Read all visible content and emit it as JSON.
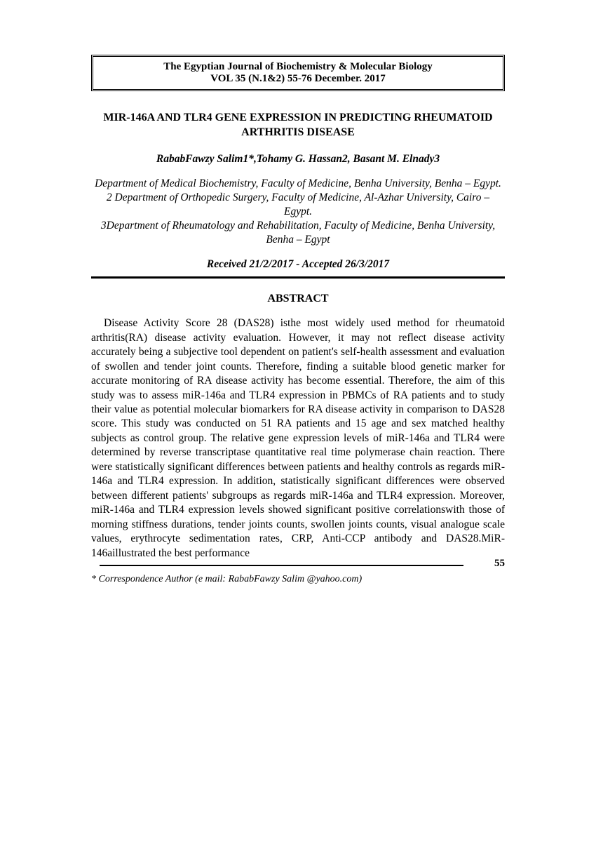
{
  "journal": {
    "line1": "The Egyptian Journal of Biochemistry & Molecular Biology",
    "line2": "VOL 35 (N.1&2) 55-76 December. 2017"
  },
  "title": "MIR-146A AND TLR4 GENE EXPRESSION IN PREDICTING RHEUMATOID ARTHRITIS DISEASE",
  "authors": "RababFawzy Salim1*,Tohamy G. Hassan2, Basant M. Elnady3",
  "affiliations": [
    "Department of Medical Biochemistry, Faculty of Medicine, Benha University, Benha – Egypt.",
    "2 Department of Orthopedic Surgery, Faculty of Medicine, Al-Azhar University, Cairo – Egypt.",
    "3Department of Rheumatology and Rehabilitation, Faculty of Medicine, Benha University, Benha – Egypt"
  ],
  "received": "Received 21/2/2017 - Accepted 26/3/2017",
  "abstract_heading": "ABSTRACT",
  "abstract_body": "Disease Activity Score 28 (DAS28) isthe most widely used method for rheumatoid arthritis(RA) disease activity evaluation. However, it may not reflect disease activity accurately being a subjective tool dependent on patient's self-health assessment and evaluation of swollen and tender joint counts. Therefore, finding a suitable blood genetic marker for accurate monitoring of RA disease activity has become essential. Therefore, the aim of this study was to assess miR-146a and TLR4 expression in PBMCs of RA patients and to study their value as potential molecular biomarkers for RA disease activity in comparison to DAS28 score. This study was conducted on 51 RA patients and 15 age and sex matched healthy subjects as control group. The relative gene expression levels of miR-146a and TLR4 were determined by reverse transcriptase quantitative real time polymerase chain reaction. There were statistically significant differences between patients and healthy controls as regards miR-146a and TLR4 expression. In addition, statistically significant differences were observed between different patients' subgroups as regards miR-146a and TLR4 expression. Moreover, miR-146a and TLR4 expression levels showed significant positive correlationswith those of morning stiffness durations, tender joints counts, swollen joints counts, visual analogue scale values, erythrocyte sedimentation rates, CRP, Anti-CCP antibody and DAS28.MiR-146aillustrated the best performance",
  "page_number": "55",
  "correspondence": "* Correspondence Author (e mail: RababFawzy Salim @yahoo.com)",
  "colors": {
    "text": "#000000",
    "background": "#ffffff"
  },
  "typography": {
    "base_font": "Times New Roman",
    "title_fontsize": 16,
    "body_fontsize": 15.5,
    "footer_fontsize": 14
  }
}
